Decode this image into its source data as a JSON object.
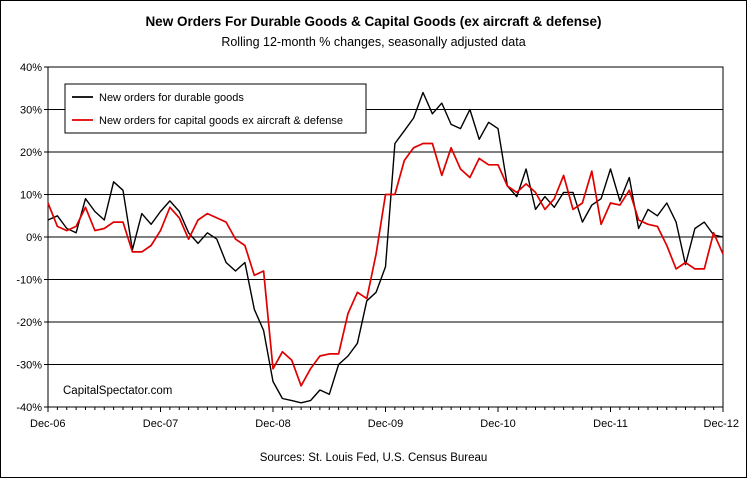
{
  "chart_data": {
    "type": "line",
    "title": "New Orders For Durable Goods & Capital Goods (ex aircraft & defense)",
    "subtitle": "Rolling 12-month % changes, seasonally adjusted data",
    "source": "Sources: St. Louis Fed, U.S. Census Bureau",
    "watermark": "CapitalSpectator.com",
    "xlabel": "",
    "ylabel": "",
    "ylim": [
      -40,
      40
    ],
    "yticks": [
      -40,
      -30,
      -20,
      -10,
      0,
      10,
      20,
      30,
      40
    ],
    "ytick_labels": [
      "-40%",
      "-30%",
      "-20%",
      "-10%",
      "0%",
      "10%",
      "20%",
      "30%",
      "40%"
    ],
    "x_months_range": [
      "Dec-06",
      "Dec-12"
    ],
    "xtick_labels": [
      "Dec-06",
      "Dec-07",
      "Dec-08",
      "Dec-09",
      "Dec-10",
      "Dec-11",
      "Dec-12"
    ],
    "grid": "horizontal",
    "legend_position": "top-left",
    "series": [
      {
        "name": "New orders for durable goods",
        "color": "#000000",
        "values": [
          4,
          5,
          2,
          1,
          9,
          6,
          4,
          13,
          11,
          -3,
          5.5,
          3,
          6,
          8.5,
          6,
          1,
          -1.5,
          1,
          -0.5,
          -6,
          -8,
          -6,
          -17,
          -22,
          -34,
          -38,
          -38.5,
          -39,
          -38.5,
          -36,
          -37,
          -30,
          -28,
          -25,
          -15,
          -13,
          -7,
          22,
          25,
          28,
          34,
          29,
          31.5,
          26.5,
          25.5,
          30,
          23,
          27,
          25.5,
          12,
          9.5,
          16,
          6.5,
          9.5,
          7,
          10.5,
          10.5,
          3.5,
          7.5,
          9,
          16,
          8.5,
          14,
          2,
          6.5,
          5,
          8,
          3.5,
          -6.5,
          2,
          3.5,
          0.5,
          0
        ]
      },
      {
        "name": "New orders for capital goods ex aircraft & defense",
        "color": "#e00000",
        "values": [
          8,
          2.5,
          1.5,
          2.5,
          7,
          1.5,
          2,
          3.5,
          3.5,
          -3.5,
          -3.5,
          -2,
          1.5,
          7,
          4.5,
          -0.5,
          4,
          5.5,
          4.5,
          3.5,
          -0.5,
          -2,
          -9,
          -8,
          -31,
          -27,
          -29,
          -35,
          -31,
          -28,
          -27.5,
          -27.5,
          -18,
          -13,
          -14.5,
          -4,
          10,
          10,
          18,
          21,
          22,
          22,
          14.5,
          21,
          16,
          14,
          18.5,
          17,
          17,
          12,
          10.5,
          12.5,
          10.5,
          6.5,
          9,
          14.5,
          6.5,
          8,
          15.5,
          3,
          8,
          7.5,
          11,
          4,
          3,
          2.5,
          -2,
          -7.5,
          -6,
          -7.5,
          -7.5,
          1,
          -4
        ]
      }
    ]
  }
}
